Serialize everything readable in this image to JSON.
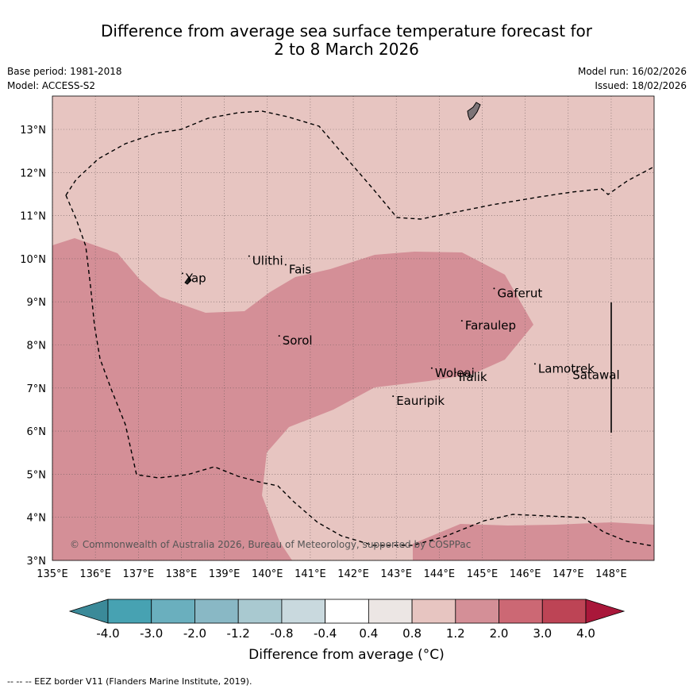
{
  "title": {
    "line1": "Difference from average sea surface temperature forecast for",
    "line2": "2 to 8 March 2026"
  },
  "meta": {
    "base_period": "Base period: 1981-2018",
    "model": "Model: ACCESS-S2",
    "model_run": "Model run: 16/02/2026",
    "issued": "Issued: 18/02/2026"
  },
  "map": {
    "lon_range": [
      135,
      149
    ],
    "lat_range": [
      3,
      13.8
    ],
    "lon_ticks": [
      "135°E",
      "136°E",
      "137°E",
      "138°E",
      "139°E",
      "140°E",
      "141°E",
      "142°E",
      "143°E",
      "144°E",
      "145°E",
      "146°E",
      "147°E",
      "148°E"
    ],
    "lat_ticks": [
      "3°N",
      "4°N",
      "5°N",
      "6°N",
      "7°N",
      "8°N",
      "9°N",
      "10°N",
      "11°N",
      "12°N",
      "13°N"
    ],
    "background_category": "0.8 to 1.2",
    "warm_category": "1.2 to 2.0",
    "places": [
      {
        "name": "Yap",
        "lon": 138.1,
        "lat": 9.55
      },
      {
        "name": "Ulithi",
        "lon": 139.65,
        "lat": 9.95
      },
      {
        "name": "Fais",
        "lon": 140.5,
        "lat": 9.75
      },
      {
        "name": "Sorol",
        "lon": 140.35,
        "lat": 8.1
      },
      {
        "name": "Gaferut",
        "lon": 145.35,
        "lat": 9.2
      },
      {
        "name": "Faraulep",
        "lon": 144.6,
        "lat": 8.45
      },
      {
        "name": "Woleai",
        "lon": 143.9,
        "lat": 7.35
      },
      {
        "name": "Ifalik",
        "lon": 144.45,
        "lat": 7.25
      },
      {
        "name": "Eauripik",
        "lon": 143.0,
        "lat": 6.7
      },
      {
        "name": "Lamotrek",
        "lon": 146.3,
        "lat": 7.45
      },
      {
        "name": "Satawal",
        "lon": 147.1,
        "lat": 7.3
      }
    ],
    "copyright": "© Commonwealth of Australia 2026, Bureau of Meteorology, supported by COSPPac"
  },
  "colorbar": {
    "labels": [
      "-4.0",
      "-3.0",
      "-2.0",
      "-1.2",
      "-0.8",
      "-0.4",
      "0.4",
      "0.8",
      "1.2",
      "2.0",
      "3.0",
      "4.0"
    ],
    "colors": [
      "#3b8a99",
      "#47a2b2",
      "#6aafbe",
      "#89b8c5",
      "#a9c9d0",
      "#c9d9de",
      "#ffffff",
      "#ece6e4",
      "#e7c5c1",
      "#d48f97",
      "#cc6874",
      "#bd4455",
      "#a9173a"
    ],
    "title": "Difference from average (°C)"
  },
  "footer": {
    "eez": "--  --  -- EEZ border V11 (Flanders Marine Institute, 2019)."
  }
}
